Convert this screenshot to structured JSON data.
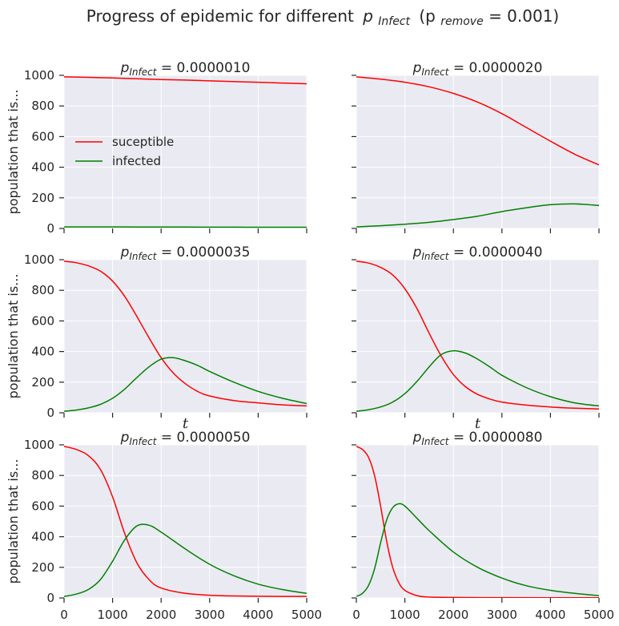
{
  "chart_data": {
    "title": "Progress of epidemic for different",
    "title_var": "p",
    "title_var_sub": "Infect",
    "title_paren": "(p",
    "title_paren_sub": "remove",
    "title_paren_value": " = 0.001)",
    "xlabel": "t",
    "ylabel": "population that is...",
    "xlim": [
      0,
      5000
    ],
    "ylim": [
      0,
      1000
    ],
    "xticks": [
      0,
      1000,
      2000,
      3000,
      4000,
      5000
    ],
    "yticks": [
      0,
      200,
      400,
      600,
      800,
      1000
    ],
    "legend": {
      "position": "center-left",
      "panel": 0,
      "entries": [
        "suceptible",
        "infected"
      ]
    },
    "colors": {
      "suceptible": "#ff0000",
      "infected": "#008000",
      "axes_bg": "#eaeaf2",
      "grid": "#ffffff"
    },
    "panels": [
      {
        "type": "line",
        "title_symbol": "p",
        "title_sub": "Infect",
        "title_value": " = 0.0000010",
        "series": [
          {
            "name": "suceptible",
            "x": [
              0,
              500,
              1000,
              1500,
              2000,
              2500,
              3000,
              3500,
              4000,
              4500,
              5000
            ],
            "y": [
              990,
              987,
              983,
              978,
              973,
              969,
              964,
              959,
              955,
              950,
              945
            ]
          },
          {
            "name": "infected",
            "x": [
              0,
              500,
              1000,
              1500,
              2000,
              2500,
              3000,
              3500,
              4000,
              4500,
              5000
            ],
            "y": [
              10,
              10,
              10,
              9.5,
              9,
              9,
              8.5,
              8.5,
              8,
              8,
              8
            ]
          }
        ]
      },
      {
        "type": "line",
        "title_symbol": "p",
        "title_sub": "Infect",
        "title_value": " = 0.0000020",
        "series": [
          {
            "name": "suceptible",
            "x": [
              0,
              500,
              1000,
              1500,
              2000,
              2500,
              3000,
              3500,
              4000,
              4500,
              5000
            ],
            "y": [
              990,
              975,
              955,
              925,
              882,
              825,
              750,
              660,
              570,
              485,
              415
            ]
          },
          {
            "name": "infected",
            "x": [
              0,
              500,
              1000,
              1500,
              2000,
              2500,
              3000,
              3500,
              4000,
              4500,
              5000
            ],
            "y": [
              10,
              18,
              28,
              40,
              58,
              80,
              110,
              135,
              155,
              160,
              150
            ]
          }
        ]
      },
      {
        "type": "line",
        "title_symbol": "p",
        "title_sub": "Infect",
        "title_value": " = 0.0000035",
        "series": [
          {
            "name": "suceptible",
            "x": [
              0,
              250,
              500,
              750,
              1000,
              1250,
              1500,
              1750,
              2000,
              2250,
              2500,
              2750,
              3000,
              3500,
              4000,
              4500,
              5000
            ],
            "y": [
              990,
              980,
              960,
              925,
              860,
              760,
              630,
              490,
              360,
              260,
              190,
              140,
              110,
              80,
              65,
              52,
              45
            ]
          },
          {
            "name": "infected",
            "x": [
              0,
              250,
              500,
              750,
              1000,
              1250,
              1500,
              1750,
              2000,
              2250,
              2500,
              2750,
              3000,
              3500,
              4000,
              4500,
              5000
            ],
            "y": [
              10,
              18,
              32,
              55,
              95,
              155,
              230,
              300,
              350,
              360,
              340,
              310,
              270,
              200,
              140,
              95,
              60
            ]
          }
        ]
      },
      {
        "type": "line",
        "title_symbol": "p",
        "title_sub": "Infect",
        "title_value": " = 0.0000040",
        "series": [
          {
            "name": "suceptible",
            "x": [
              0,
              250,
              500,
              750,
              1000,
              1250,
              1500,
              1750,
              2000,
              2250,
              2500,
              2750,
              3000,
              3500,
              4000,
              4500,
              5000
            ],
            "y": [
              990,
              978,
              950,
              900,
              810,
              680,
              520,
              370,
              250,
              170,
              120,
              90,
              70,
              50,
              38,
              30,
              25
            ]
          },
          {
            "name": "infected",
            "x": [
              0,
              250,
              500,
              750,
              1000,
              1250,
              1500,
              1750,
              2000,
              2250,
              2500,
              2750,
              3000,
              3500,
              4000,
              4500,
              5000
            ],
            "y": [
              10,
              20,
              38,
              70,
              125,
              205,
              300,
              380,
              405,
              390,
              350,
              300,
              245,
              165,
              105,
              65,
              45
            ]
          }
        ]
      },
      {
        "type": "line",
        "title_symbol": "p",
        "title_sub": "Infect",
        "title_value": " = 0.0000050",
        "series": [
          {
            "name": "suceptible",
            "x": [
              0,
              250,
              500,
              750,
              1000,
              1250,
              1500,
              1750,
              2000,
              2500,
              3000,
              3500,
              4000,
              4500,
              5000
            ],
            "y": [
              990,
              970,
              930,
              840,
              660,
              420,
              230,
              120,
              65,
              30,
              18,
              13,
              11,
              10,
              10
            ]
          },
          {
            "name": "infected",
            "x": [
              0,
              250,
              500,
              750,
              1000,
              1250,
              1500,
              1750,
              2000,
              2500,
              3000,
              3500,
              4000,
              4500,
              5000
            ],
            "y": [
              10,
              25,
              55,
              120,
              240,
              380,
              470,
              475,
              430,
              320,
              220,
              145,
              90,
              55,
              30
            ]
          }
        ]
      },
      {
        "type": "line",
        "title_symbol": "p",
        "title_sub": "Infect",
        "title_value": " = 0.0000080",
        "series": [
          {
            "name": "suceptible",
            "x": [
              0,
              125,
              250,
              375,
              500,
              625,
              750,
              875,
              1000,
              1250,
              1500,
              2000,
              3000,
              4000,
              5000
            ],
            "y": [
              990,
              970,
              920,
              800,
              600,
              370,
              200,
              100,
              50,
              15,
              6,
              3,
              2,
              1,
              1
            ]
          },
          {
            "name": "infected",
            "x": [
              0,
              125,
              250,
              375,
              500,
              625,
              750,
              875,
              1000,
              1250,
              1500,
              2000,
              2500,
              3000,
              3500,
              4000,
              4500,
              5000
            ],
            "y": [
              10,
              30,
              80,
              190,
              360,
              510,
              590,
              615,
              600,
              520,
              440,
              300,
              200,
              130,
              80,
              50,
              30,
              15
            ]
          }
        ]
      }
    ]
  }
}
